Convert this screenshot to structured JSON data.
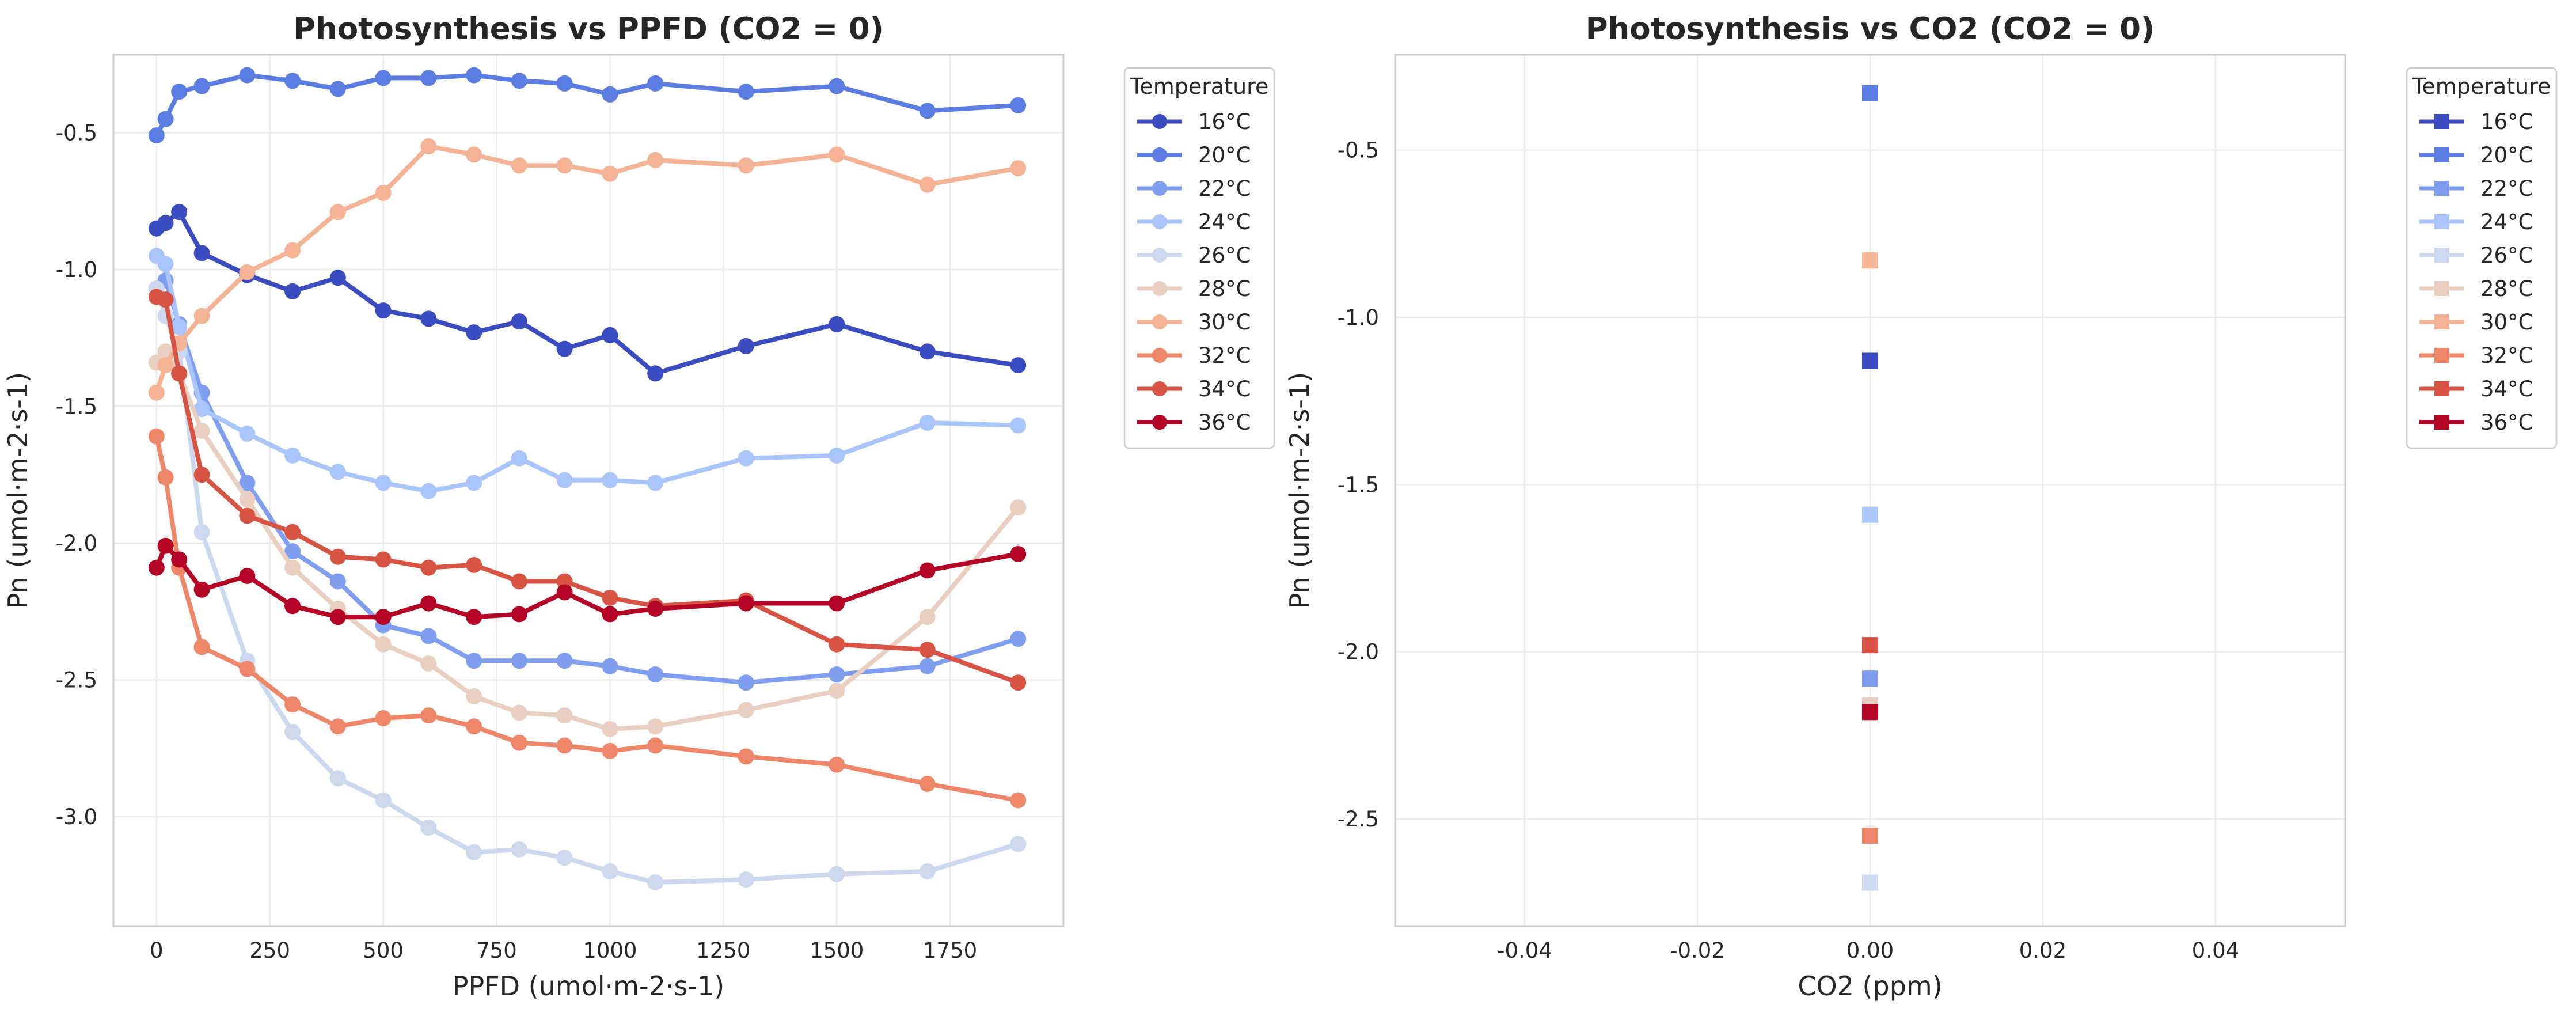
{
  "chart_data": [
    {
      "type": "line",
      "title": "Photosynthesis vs PPFD (CO2 = 0)",
      "xlabel": "PPFD (umol·m-2·s-1)",
      "ylabel": "Pn (umol·m-2·s-1)",
      "xlim": [
        -95,
        2000
      ],
      "ylim": [
        -3.4,
        -0.215
      ],
      "xticks": [
        0,
        250,
        500,
        750,
        1000,
        1250,
        1500,
        1750
      ],
      "yticks": [
        -3.0,
        -2.5,
        -2.0,
        -1.5,
        -1.0,
        -0.5
      ],
      "grid": true,
      "marker": "circle",
      "legend": {
        "title": "Temperature",
        "position": "outside-right"
      },
      "x": [
        0,
        20,
        50,
        100,
        200,
        300,
        400,
        500,
        600,
        700,
        800,
        900,
        1000,
        1100,
        1300,
        1500,
        1700,
        1900
      ],
      "series": [
        {
          "name": "16°C",
          "color": "#3b4cc0",
          "values": [
            -0.85,
            -0.83,
            -0.79,
            -0.94,
            -1.02,
            -1.08,
            -1.03,
            -1.15,
            -1.18,
            -1.23,
            -1.19,
            -1.29,
            -1.24,
            -1.38,
            -1.28,
            -1.2,
            -1.3,
            -1.35
          ]
        },
        {
          "name": "20°C",
          "color": "#5b7ce0",
          "values": [
            -0.51,
            -0.45,
            -0.35,
            -0.33,
            -0.29,
            -0.31,
            -0.34,
            -0.3,
            -0.3,
            -0.29,
            -0.31,
            -0.32,
            -0.36,
            -0.32,
            -0.35,
            -0.33,
            -0.42,
            -0.4
          ]
        },
        {
          "name": "22°C",
          "color": "#7f9ef0",
          "values": [
            -1.07,
            -1.04,
            -1.2,
            -1.45,
            -1.78,
            -2.03,
            -2.14,
            -2.3,
            -2.34,
            -2.43,
            -2.43,
            -2.43,
            -2.45,
            -2.48,
            -2.51,
            -2.48,
            -2.45,
            -2.35
          ]
        },
        {
          "name": "24°C",
          "color": "#a9c5fb",
          "values": [
            -0.95,
            -0.98,
            -1.21,
            -1.51,
            -1.6,
            -1.68,
            -1.74,
            -1.78,
            -1.81,
            -1.78,
            -1.69,
            -1.77,
            -1.77,
            -1.78,
            -1.69,
            -1.68,
            -1.56,
            -1.57
          ]
        },
        {
          "name": "26°C",
          "color": "#cbd8ee",
          "values": [
            -1.07,
            -1.17,
            -1.3,
            -1.96,
            -2.43,
            -2.69,
            -2.86,
            -2.94,
            -3.04,
            -3.13,
            -3.12,
            -3.15,
            -3.2,
            -3.24,
            -3.23,
            -3.21,
            -3.2,
            -3.1
          ]
        },
        {
          "name": "28°C",
          "color": "#e8cfc1",
          "values": [
            -1.34,
            -1.3,
            -1.38,
            -1.59,
            -1.84,
            -2.09,
            -2.24,
            -2.37,
            -2.44,
            -2.56,
            -2.62,
            -2.63,
            -2.68,
            -2.67,
            -2.61,
            -2.54,
            -2.27,
            -1.87
          ]
        },
        {
          "name": "30°C",
          "color": "#f5b396",
          "values": [
            -1.45,
            -1.35,
            -1.27,
            -1.17,
            -1.01,
            -0.93,
            -0.79,
            -0.72,
            -0.55,
            -0.58,
            -0.62,
            -0.62,
            -0.65,
            -0.6,
            -0.62,
            -0.58,
            -0.69,
            -0.63
          ]
        },
        {
          "name": "32°C",
          "color": "#ee8669",
          "values": [
            -1.61,
            -1.76,
            -2.09,
            -2.38,
            -2.46,
            -2.59,
            -2.67,
            -2.64,
            -2.63,
            -2.67,
            -2.73,
            -2.74,
            -2.76,
            -2.74,
            -2.78,
            -2.81,
            -2.88,
            -2.94
          ]
        },
        {
          "name": "34°C",
          "color": "#d75445",
          "values": [
            -1.1,
            -1.11,
            -1.38,
            -1.75,
            -1.9,
            -1.96,
            -2.05,
            -2.06,
            -2.09,
            -2.08,
            -2.14,
            -2.14,
            -2.2,
            -2.23,
            -2.21,
            -2.37,
            -2.39,
            -2.51
          ]
        },
        {
          "name": "36°C",
          "color": "#b40426",
          "values": [
            -2.09,
            -2.01,
            -2.06,
            -2.17,
            -2.12,
            -2.23,
            -2.27,
            -2.27,
            -2.22,
            -2.27,
            -2.26,
            -2.18,
            -2.26,
            -2.24,
            -2.22,
            -2.22,
            -2.1,
            -2.04
          ]
        }
      ]
    },
    {
      "type": "scatter",
      "title": "Photosynthesis vs CO2 (CO2 = 0)",
      "xlabel": "CO2 (ppm)",
      "ylabel": "Pn (umol·m-2·s-1)",
      "xlim": [
        -0.055,
        0.055
      ],
      "ylim": [
        -2.82,
        -0.215
      ],
      "xticks": [
        -0.04,
        -0.02,
        0.0,
        0.02,
        0.04
      ],
      "yticks": [
        -2.5,
        -2.0,
        -1.5,
        -1.0,
        -0.5
      ],
      "grid": true,
      "marker": "square",
      "legend": {
        "title": "Temperature",
        "position": "outside-right"
      },
      "series": [
        {
          "name": "16°C",
          "color": "#3b4cc0",
          "points": [
            [
              0,
              -1.13
            ]
          ]
        },
        {
          "name": "20°C",
          "color": "#5b7ce0",
          "points": [
            [
              0,
              -0.33
            ]
          ]
        },
        {
          "name": "22°C",
          "color": "#7f9ef0",
          "points": [
            [
              0,
              -2.08
            ]
          ]
        },
        {
          "name": "24°C",
          "color": "#a9c5fb",
          "points": [
            [
              0,
              -1.59
            ]
          ]
        },
        {
          "name": "26°C",
          "color": "#cbd8ee",
          "points": [
            [
              0,
              -2.69
            ]
          ]
        },
        {
          "name": "28°C",
          "color": "#e8cfc1",
          "points": [
            [
              0,
              -2.16
            ]
          ]
        },
        {
          "name": "30°C",
          "color": "#f5b396",
          "points": [
            [
              0,
              -0.83
            ]
          ]
        },
        {
          "name": "32°C",
          "color": "#ee8669",
          "points": [
            [
              0,
              -2.55
            ]
          ]
        },
        {
          "name": "34°C",
          "color": "#d75445",
          "points": [
            [
              0,
              -1.98
            ]
          ]
        },
        {
          "name": "36°C",
          "color": "#b40426",
          "points": [
            [
              0,
              -2.18
            ]
          ]
        }
      ]
    }
  ]
}
